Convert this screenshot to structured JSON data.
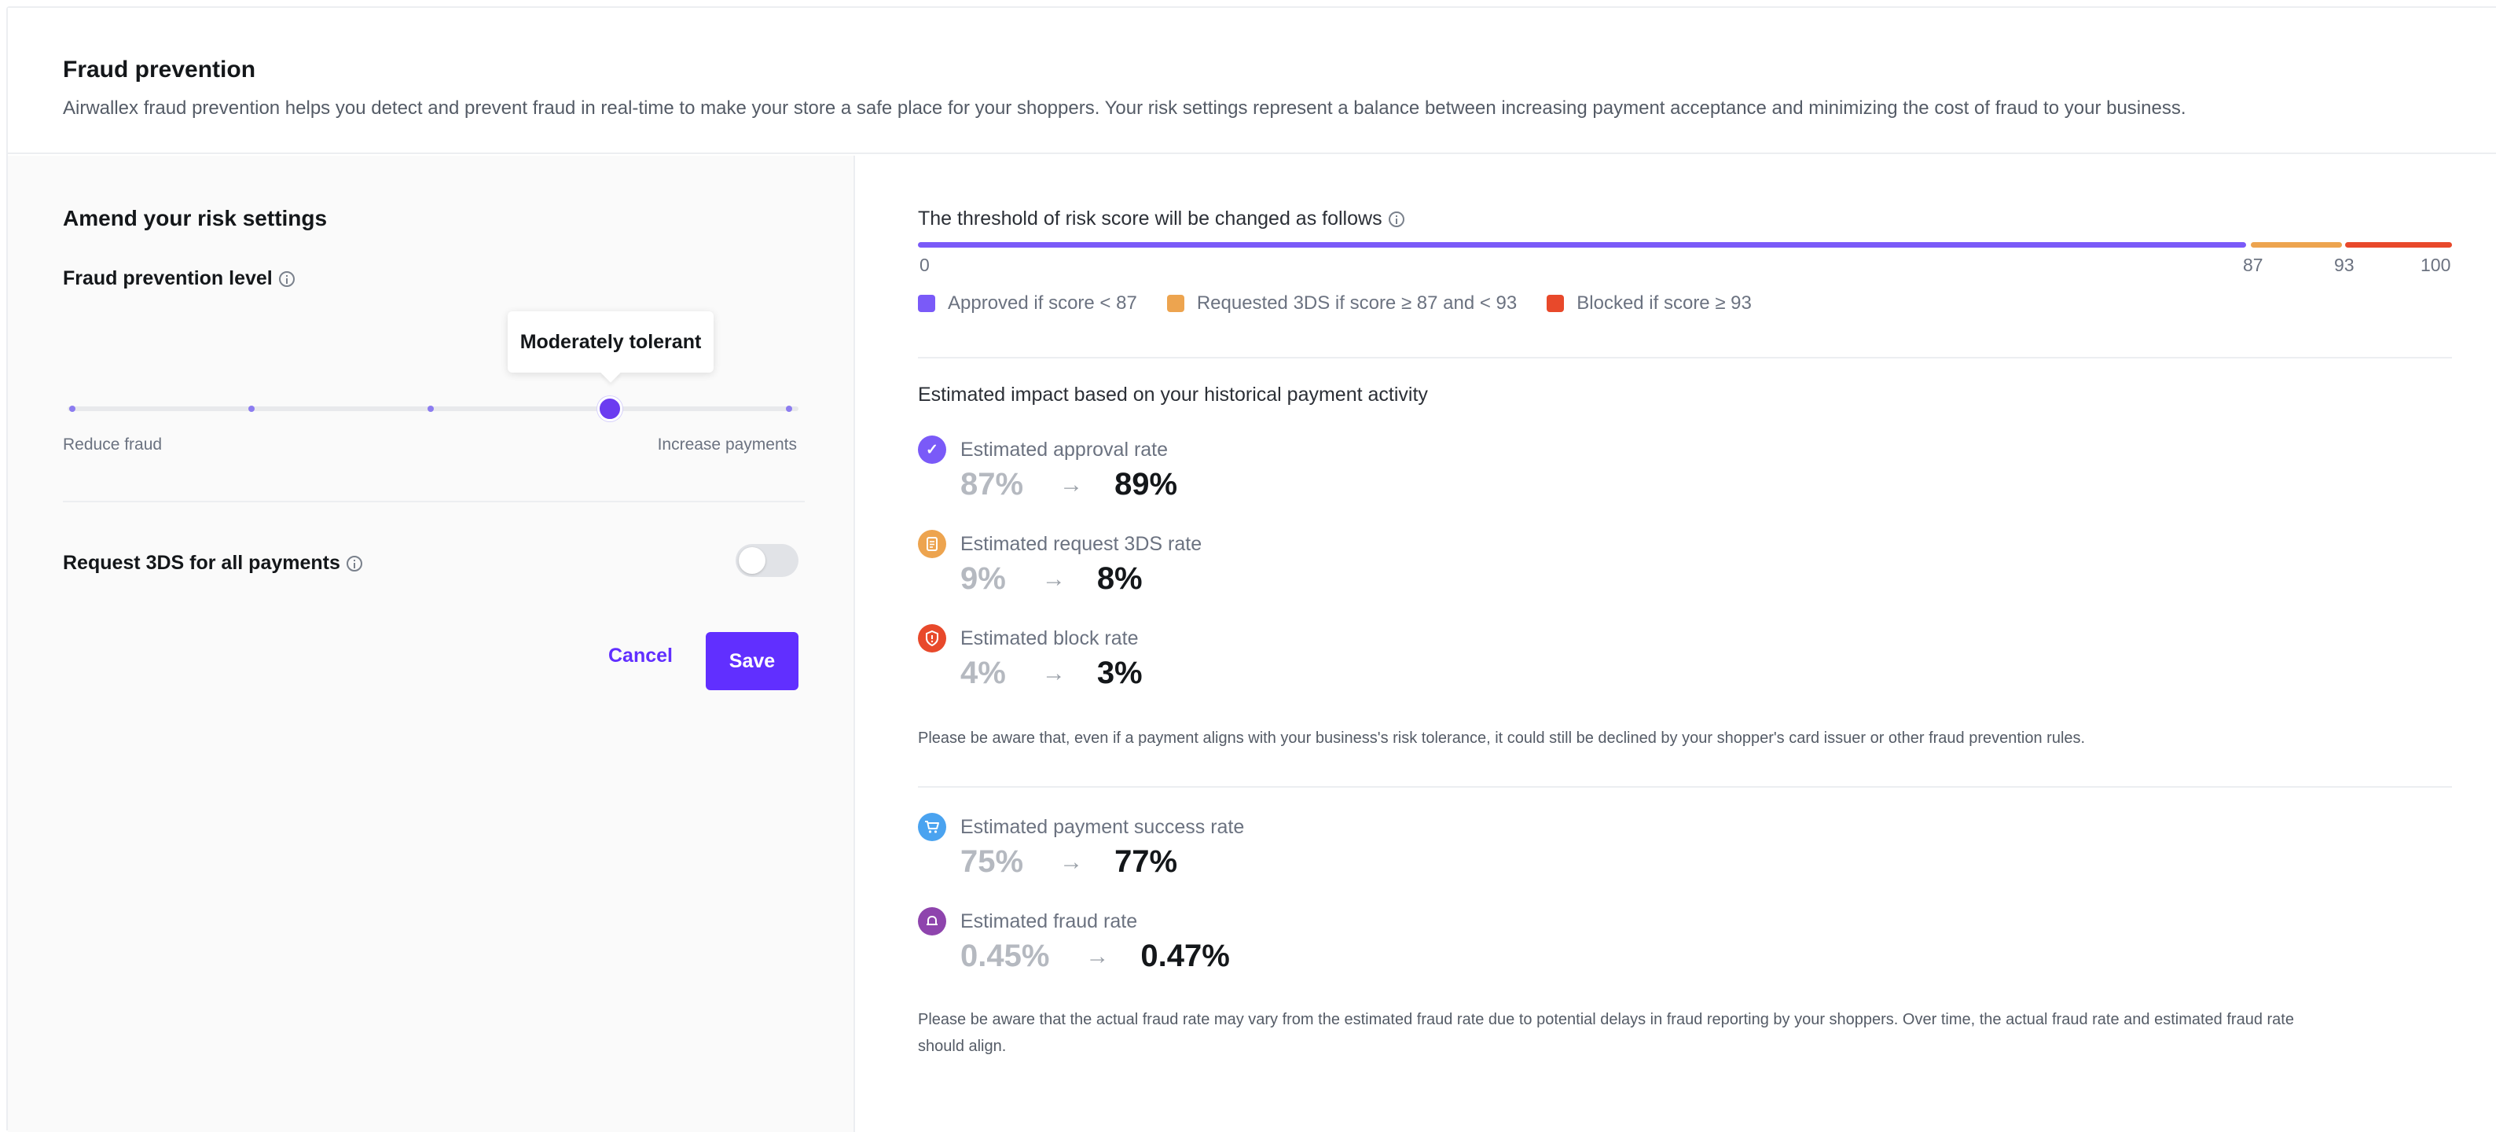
{
  "header": {
    "title": "Fraud prevention",
    "description": "Airwallex fraud prevention helps you detect and prevent fraud in real-time to make your store a safe place for your shoppers. Your risk settings represent a balance between increasing payment acceptance and minimizing the cost of fraud to your business."
  },
  "left": {
    "section_title": "Amend your risk settings",
    "level_label": "Fraud prevention level",
    "slider": {
      "tooltip": "Moderately tolerant",
      "steps": 5,
      "selected_step": 4,
      "min_caption": "Reduce fraud",
      "max_caption": "Increase payments"
    },
    "request_3ds_label": "Request 3DS for all payments",
    "request_3ds_enabled": false,
    "cancel_label": "Cancel",
    "save_label": "Save"
  },
  "right": {
    "threshold_title": "The threshold of risk score will be changed as follows",
    "threshold": {
      "min": 0,
      "max": 100,
      "approve_below": 87,
      "block_at_or_above": 93,
      "ticks": [
        "0",
        "87",
        "93",
        "100"
      ]
    },
    "legend": [
      {
        "label": "Approved if score < 87",
        "color": "#7a5af8"
      },
      {
        "label": "Requested 3DS if score ≥ 87 and < 93",
        "color": "#eda44f"
      },
      {
        "label": "Blocked if score ≥ 93",
        "color": "#e8492b"
      }
    ],
    "impact_title": "Estimated impact based on your historical payment activity",
    "metrics": [
      {
        "label": "Estimated approval rate",
        "old": "87%",
        "new": "89%",
        "icon": "check-icon",
        "color": "#7a5af8"
      },
      {
        "label": "Estimated request 3DS rate",
        "old": "9%",
        "new": "8%",
        "icon": "document-icon",
        "color": "#eda44f"
      },
      {
        "label": "Estimated block rate",
        "old": "4%",
        "new": "3%",
        "icon": "shield-icon",
        "color": "#e8492b"
      }
    ],
    "note_1": "Please be aware that, even if a payment aligns with your business's risk tolerance, it could still be declined by your shopper's card issuer or other fraud prevention rules.",
    "metrics_2": [
      {
        "label": "Estimated payment success rate",
        "old": "75%",
        "new": "77%",
        "icon": "cart-icon",
        "color": "#4aa3f0"
      },
      {
        "label": "Estimated fraud rate",
        "old": "0.45%",
        "new": "0.47%",
        "icon": "bell-icon",
        "color": "#8e44ad"
      }
    ],
    "note_2_line1": "Please be aware that the actual fraud rate may vary from the estimated fraud rate due to potential delays in fraud reporting by your shoppers. Over time, the actual fraud rate and estimated fraud rate",
    "note_2_line2": "should align."
  },
  "colors": {
    "accent": "#612fff",
    "approve": "#7a5af8",
    "challenge": "#eda44f",
    "block": "#e8492b"
  }
}
